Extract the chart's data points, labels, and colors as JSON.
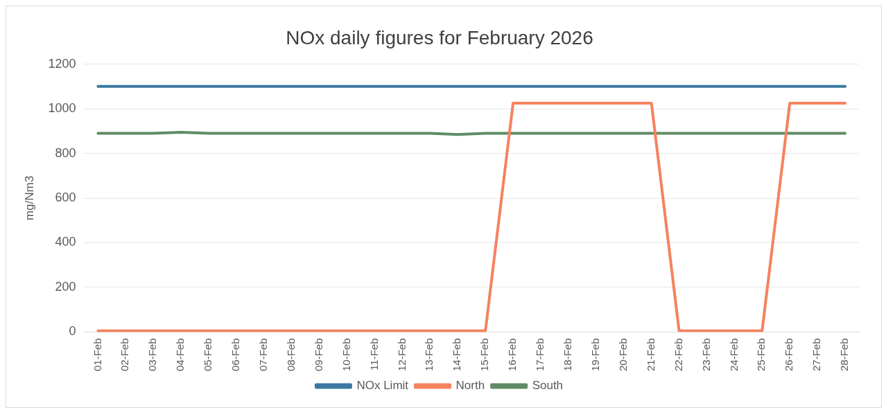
{
  "chart_data": {
    "type": "line",
    "title": "NOx daily figures for February 2026",
    "ylabel": "mg/Nm3",
    "categories": [
      "01-Feb",
      "02-Feb",
      "03-Feb",
      "04-Feb",
      "05-Feb",
      "06-Feb",
      "07-Feb",
      "08-Feb",
      "09-Feb",
      "10-Feb",
      "11-Feb",
      "12-Feb",
      "13-Feb",
      "14-Feb",
      "15-Feb",
      "16-Feb",
      "17-Feb",
      "18-Feb",
      "19-Feb",
      "20-Feb",
      "21-Feb",
      "22-Feb",
      "23-Feb",
      "24-Feb",
      "25-Feb",
      "26-Feb",
      "27-Feb",
      "28-Feb"
    ],
    "series": [
      {
        "name": "NOx Limit",
        "color": "#3b77a2",
        "values": [
          1100,
          1100,
          1100,
          1100,
          1100,
          1100,
          1100,
          1100,
          1100,
          1100,
          1100,
          1100,
          1100,
          1100,
          1100,
          1100,
          1100,
          1100,
          1100,
          1100,
          1100,
          1100,
          1100,
          1100,
          1100,
          1100,
          1100,
          1100
        ]
      },
      {
        "name": "North",
        "color": "#f5825e",
        "values": [
          5,
          5,
          5,
          5,
          5,
          5,
          5,
          5,
          5,
          5,
          5,
          5,
          5,
          5,
          5,
          1025,
          1025,
          1025,
          1025,
          1025,
          1025,
          5,
          5,
          5,
          5,
          1025,
          1025,
          1025
        ]
      },
      {
        "name": "South",
        "color": "#5f8b66",
        "values": [
          890,
          890,
          890,
          895,
          890,
          890,
          890,
          890,
          890,
          890,
          890,
          890,
          890,
          885,
          890,
          890,
          890,
          890,
          890,
          890,
          890,
          890,
          890,
          890,
          890,
          890,
          890,
          890
        ]
      }
    ],
    "ylim": [
      0,
      1200
    ],
    "yticks": [
      0,
      200,
      400,
      600,
      800,
      1000,
      1200
    ],
    "grid": "y",
    "legend": "bottom",
    "marker": "none",
    "line_style": "solid"
  }
}
